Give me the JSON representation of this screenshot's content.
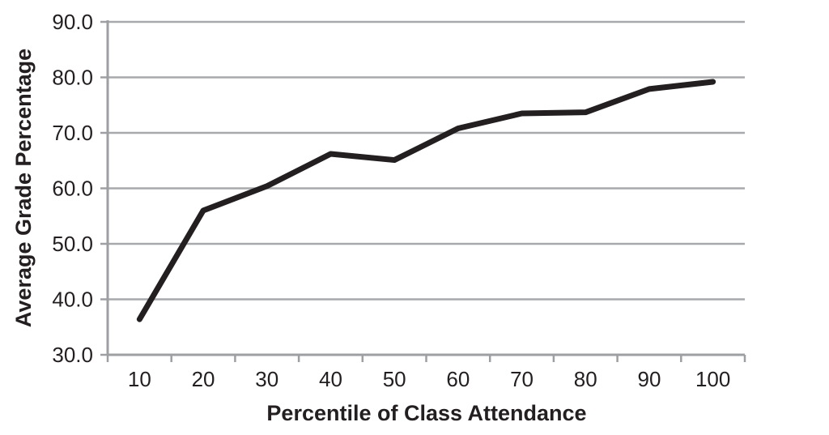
{
  "chart_data": {
    "type": "line",
    "title": "",
    "xlabel": "Percentile of Class Attendance",
    "ylabel": "Average Grade Percentage",
    "x": [
      10,
      20,
      30,
      40,
      50,
      60,
      70,
      80,
      90,
      100
    ],
    "series": [
      {
        "name": "Average Grade Percentage",
        "values": [
          36.4,
          56.0,
          60.4,
          66.2,
          65.1,
          70.8,
          73.5,
          73.7,
          77.9,
          79.2
        ]
      }
    ],
    "xtick_labels": [
      "10",
      "20",
      "30",
      "40",
      "50",
      "60",
      "70",
      "80",
      "90",
      "100"
    ],
    "ytick_values": [
      30,
      40,
      50,
      60,
      70,
      80,
      90
    ],
    "ytick_labels": [
      "30.0",
      "40.0",
      "50.0",
      "60.0",
      "70.0",
      "80.0",
      "90.0"
    ],
    "ylim": [
      30,
      90
    ],
    "grid": "horizontal",
    "legend": "none",
    "colors": {
      "line": "#231f20",
      "grid": "#a7a9ac",
      "axis": "#9d9fa2",
      "text": "#231f20",
      "background": "#ffffff"
    }
  }
}
